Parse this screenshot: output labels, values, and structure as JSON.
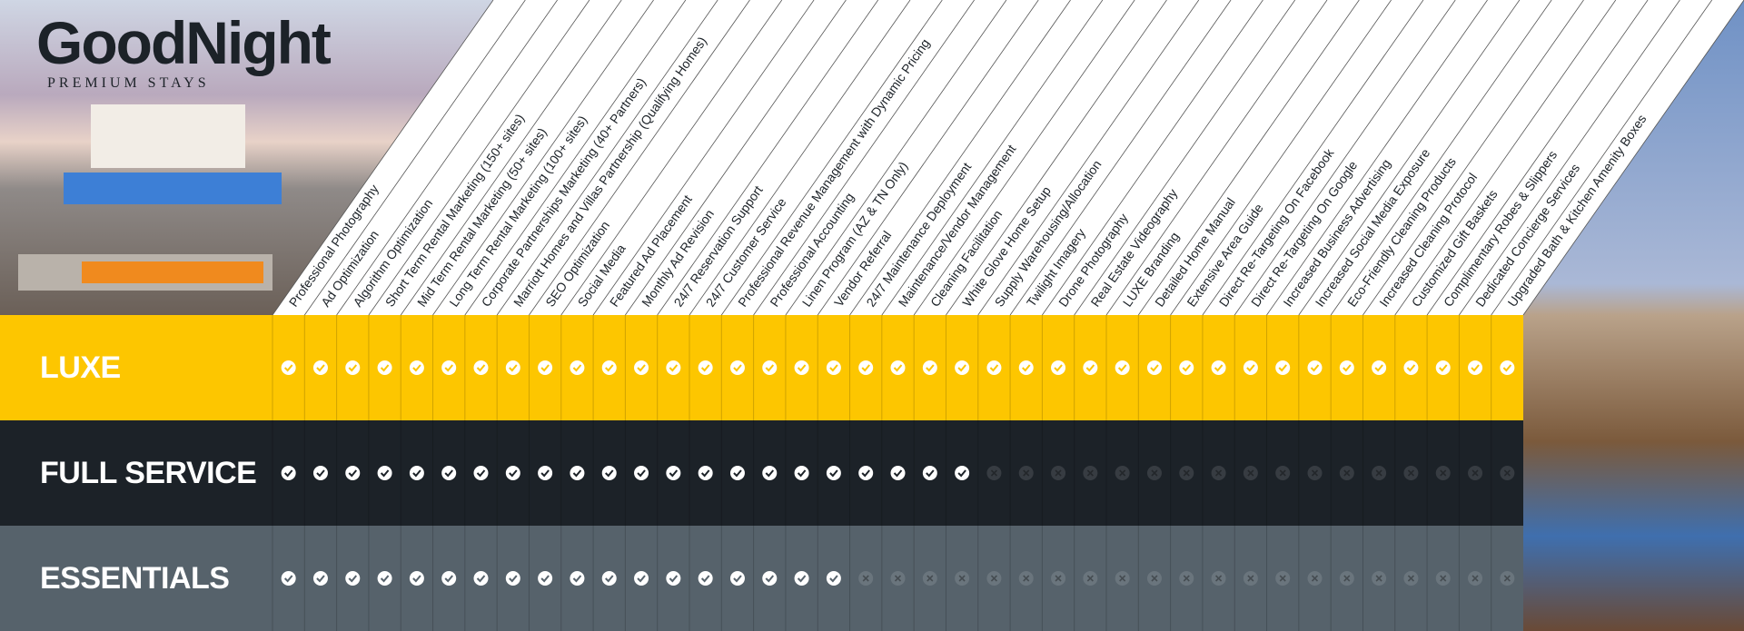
{
  "header": {
    "brand": "GoodNight",
    "tagline": "PREMIUM STAYS"
  },
  "features": [
    "Professional Photography",
    "Ad Optimization",
    "Algorithm Optimization",
    "Short Term Rental Marketing (150+ sites)",
    "Mid Term Rental Marketing (50+ sites)",
    "Long Term Rental Marketing (100+ sites)",
    "Corporate Partnerships Marketing (40+ Partners)",
    "Marriott Homes and Villas Partnership (Qualifying Homes)",
    "SEO Optimization",
    "Social Media",
    "Featured Ad Placement",
    "Monthly Ad Revision",
    "24/7 Reservation Support",
    "24/7 Customer Service",
    "Professional Revenue Management with Dynamic Pricing",
    "Professional Accounting",
    "Linen Program (AZ & TN Only)",
    "Vendor Referral",
    "24/7 Maintenance Deployment",
    "Maintenance/Vendor Management",
    "Cleaning Facilitation",
    "White Glove Home Setup",
    "Supply Warehousing/Allocation",
    "Twilight Imagery",
    "Drone Photography",
    "Real Estate Videography",
    "LUXE Branding",
    "Detailed Home Manual",
    "Extensive Area Guide",
    "Direct Re-Targeting On Facebook",
    "Direct Re-Targeting On Google",
    "Increased Business Advertising",
    "Increased Social Media Exposure",
    "Eco-Friendly Cleaning Products",
    "Increased Cleaning Protocol",
    "Customized Gift Baskets",
    "Complimentary Robes & Slippers",
    "Dedicated Concierge Services",
    "Upgraded Bath & Kitchen Amenity Boxes"
  ],
  "tiers": [
    {
      "name": "LUXE",
      "color": "#fdc600",
      "included": [
        true,
        true,
        true,
        true,
        true,
        true,
        true,
        true,
        true,
        true,
        true,
        true,
        true,
        true,
        true,
        true,
        true,
        true,
        true,
        true,
        true,
        true,
        true,
        true,
        true,
        true,
        true,
        true,
        true,
        true,
        true,
        true,
        true,
        true,
        true,
        true,
        true,
        true,
        true
      ]
    },
    {
      "name": "FULL SERVICE",
      "color": "#1c2228",
      "included": [
        true,
        true,
        true,
        true,
        true,
        true,
        true,
        true,
        true,
        true,
        true,
        true,
        true,
        true,
        true,
        true,
        true,
        true,
        true,
        true,
        true,
        true,
        false,
        false,
        false,
        false,
        false,
        false,
        false,
        false,
        false,
        false,
        false,
        false,
        false,
        false,
        false,
        false,
        false
      ]
    },
    {
      "name": "ESSENTIALS",
      "color": "#56626b",
      "included": [
        true,
        true,
        true,
        true,
        true,
        true,
        true,
        true,
        true,
        true,
        true,
        true,
        true,
        true,
        true,
        true,
        true,
        true,
        false,
        false,
        false,
        false,
        false,
        false,
        false,
        false,
        false,
        false,
        false,
        false,
        false,
        false,
        false,
        false,
        false,
        false,
        false,
        false,
        false
      ]
    }
  ]
}
